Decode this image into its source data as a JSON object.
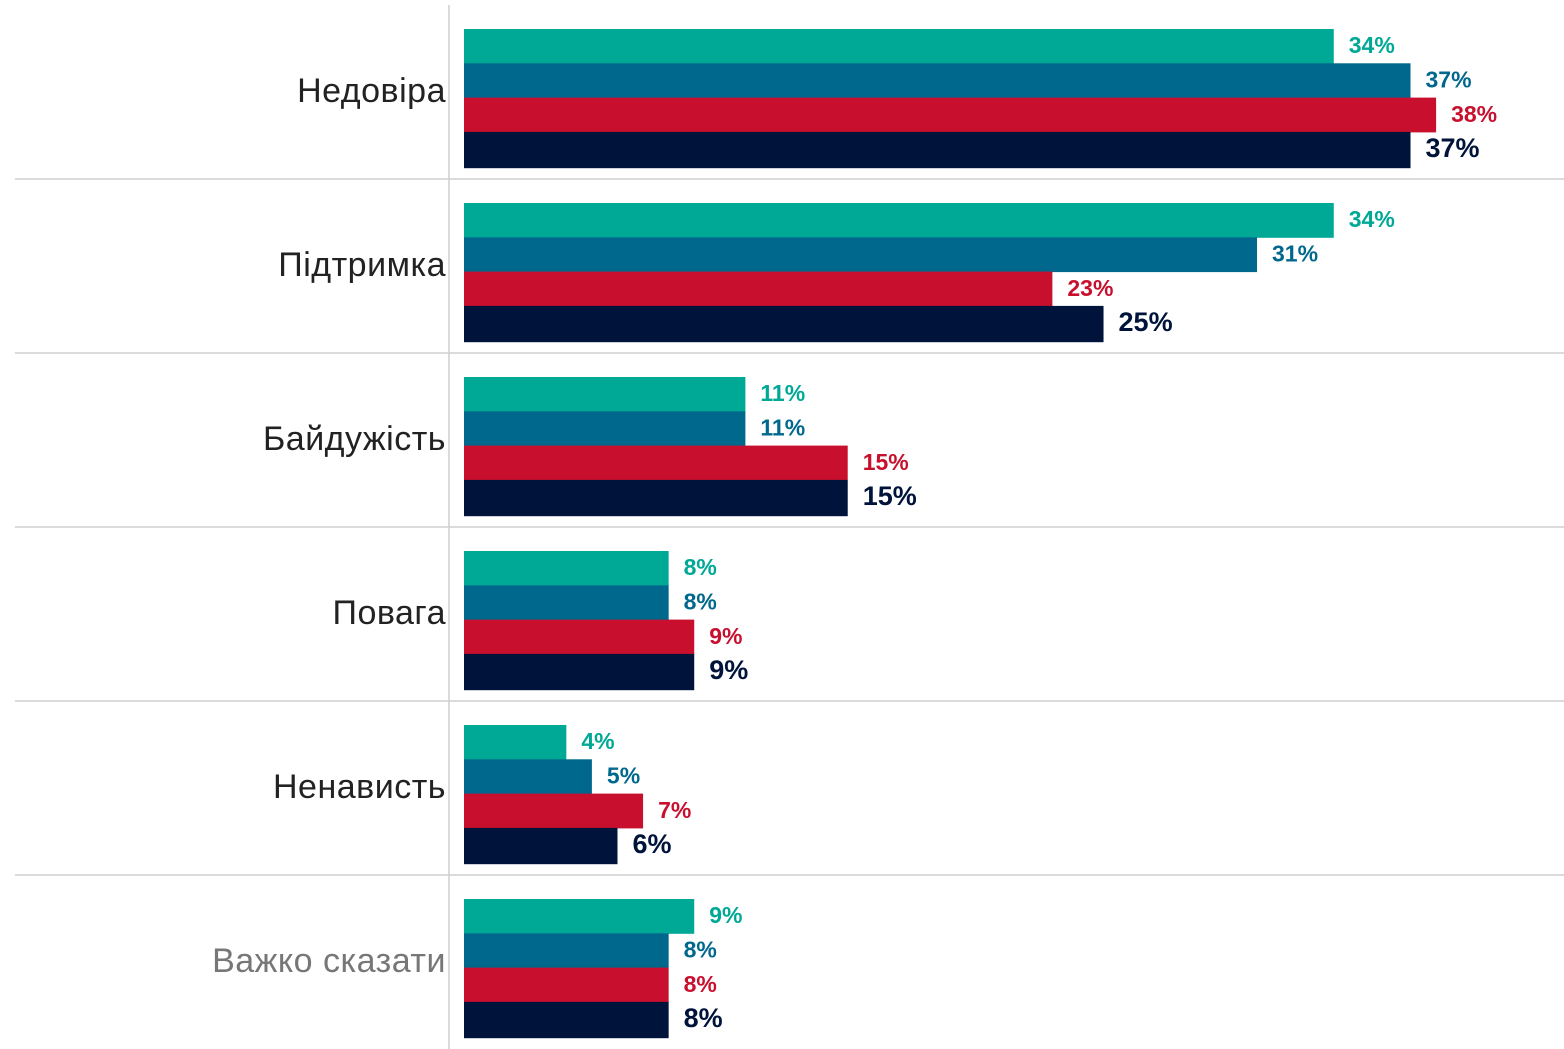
{
  "chart_data": {
    "type": "hbar",
    "categories": [
      "Недовіра",
      "Підтримка",
      "Байдужість",
      "Повага",
      "Ненависть",
      "Важко сказати"
    ],
    "series": [
      {
        "color": "#00a896",
        "values": [
          34,
          34,
          11,
          8,
          4,
          9
        ],
        "value_labels": [
          "34%",
          "34%",
          "11%",
          "8%",
          "4%",
          "9%"
        ]
      },
      {
        "color": "#00688c",
        "values": [
          37,
          31,
          11,
          8,
          5,
          8
        ],
        "value_labels": [
          "37%",
          "31%",
          "11%",
          "8%",
          "5%",
          "8%"
        ]
      },
      {
        "color": "#c8102e",
        "values": [
          38,
          23,
          15,
          9,
          7,
          8
        ],
        "value_labels": [
          "38%",
          "23%",
          "15%",
          "9%",
          "7%",
          "8%"
        ]
      },
      {
        "color": "#00133a",
        "values": [
          37,
          25,
          15,
          9,
          6,
          8
        ],
        "value_labels": [
          "37%",
          "25%",
          "15%",
          "9%",
          "6%",
          "8%"
        ]
      }
    ],
    "xlim": [
      0,
      43
    ]
  }
}
